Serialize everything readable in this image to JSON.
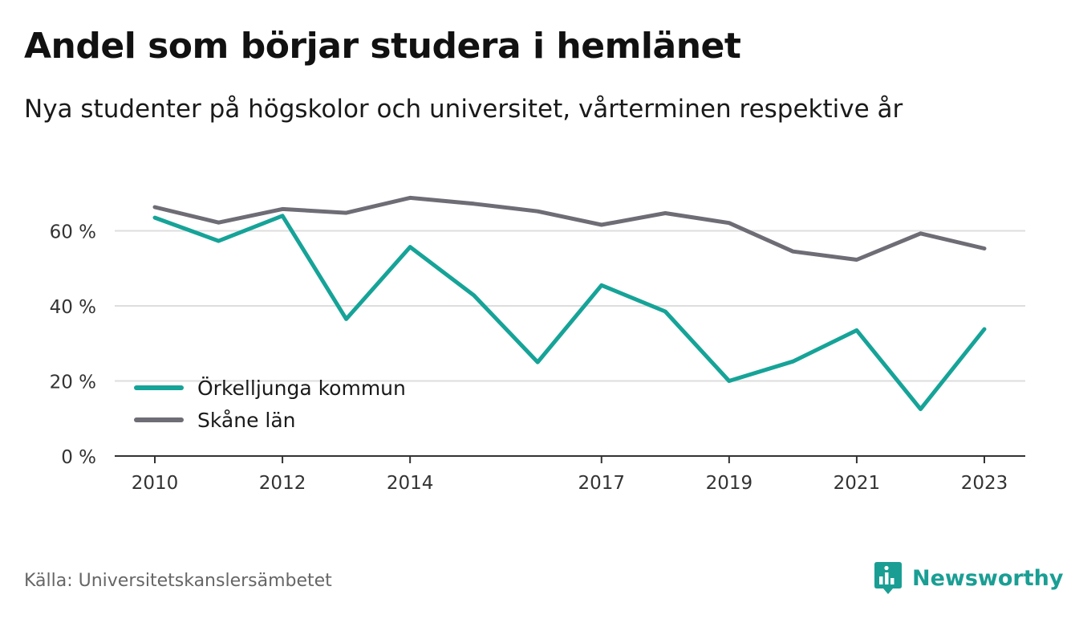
{
  "title": "Andel som börjar studera i hemlänet",
  "subtitle": "Nya studenter på högskolor och universitet, vårterminen respektive år",
  "source": "Källa: Universitetskanslersämbetet",
  "brand": {
    "name": "Newsworthy",
    "icon": "newsworthy-logo-icon",
    "color": "#1a9e94"
  },
  "colors": {
    "grid": "#dedede",
    "axis": "#333333",
    "tick_text": "#333333"
  },
  "chart_data": {
    "type": "line",
    "title": "Andel som börjar studera i hemlänet",
    "subtitle": "Nya studenter på högskolor och universitet, vårterminen respektive år",
    "x": [
      2010,
      2011,
      2012,
      2013,
      2014,
      2015,
      2016,
      2017,
      2018,
      2019,
      2020,
      2021,
      2022,
      2023
    ],
    "x_ticks": [
      2010,
      2012,
      2014,
      2017,
      2019,
      2021,
      2023
    ],
    "x_tick_labels": [
      "2010",
      "2012",
      "2014",
      "2017",
      "2019",
      "2021",
      "2023"
    ],
    "y_ticks": [
      0,
      20,
      40,
      60
    ],
    "y_tick_labels": [
      "0 %",
      "20 %",
      "40 %",
      "60 %"
    ],
    "ylim": [
      0,
      72
    ],
    "grid": true,
    "legend_position": "bottom-left",
    "series": [
      {
        "name": "Örkelljunga kommun",
        "color": "#16a398",
        "values": [
          63.5,
          57.3,
          64.0,
          36.5,
          55.7,
          42.8,
          25.0,
          45.5,
          38.5,
          20.0,
          25.2,
          33.5,
          12.5,
          33.8
        ]
      },
      {
        "name": "Skåne län",
        "color": "#6e6d76",
        "values": [
          66.3,
          62.2,
          65.8,
          64.8,
          68.8,
          67.2,
          65.2,
          61.6,
          64.7,
          62.1,
          54.5,
          52.3,
          59.3,
          55.3
        ]
      }
    ]
  }
}
